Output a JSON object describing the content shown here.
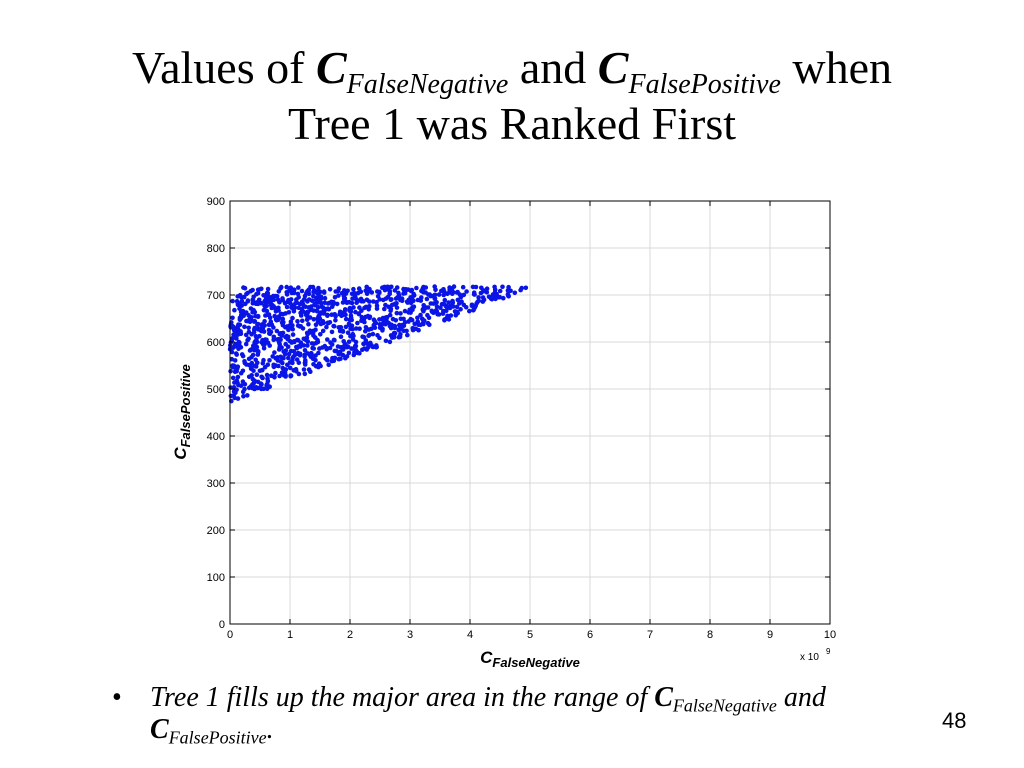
{
  "slide": {
    "title_prefix": "Values of ",
    "title_var": "C",
    "title_sub1": "FalseNegative",
    "title_and": " and ",
    "title_sub2": "FalsePositive",
    "title_when": " when",
    "title_line2": "Tree 1 was Ranked First",
    "bullet_symbol": "•",
    "bullet_text": "Tree 1 fills up the major area in the range of ",
    "bullet_var": "C",
    "bullet_sub1": "FalseNegative",
    "bullet_and": " and",
    "bullet_sub2": "FalsePositive",
    "bullet_end": ".",
    "slide_number": "48"
  },
  "chart_data": {
    "type": "scatter",
    "xlabel_main": "C",
    "xlabel_sub": "FalseNegative",
    "ylabel_main": "C",
    "ylabel_sub": "FalsePositive",
    "x_multiplier_label": "x 10",
    "x_multiplier_exp": "9",
    "xlim": [
      0,
      10
    ],
    "ylim": [
      0,
      900
    ],
    "x_ticks": [
      "0",
      "1",
      "2",
      "3",
      "4",
      "5",
      "6",
      "7",
      "8",
      "9",
      "10"
    ],
    "y_ticks": [
      "0",
      "100",
      "200",
      "300",
      "400",
      "500",
      "600",
      "700",
      "800",
      "900"
    ],
    "grid": true,
    "marker_color": "#0a14e6",
    "region": {
      "description_vertices": [
        [
          0,
          470
        ],
        [
          0,
          718
        ],
        [
          5.1,
          718
        ]
      ],
      "approx_point_count": 1100
    }
  }
}
